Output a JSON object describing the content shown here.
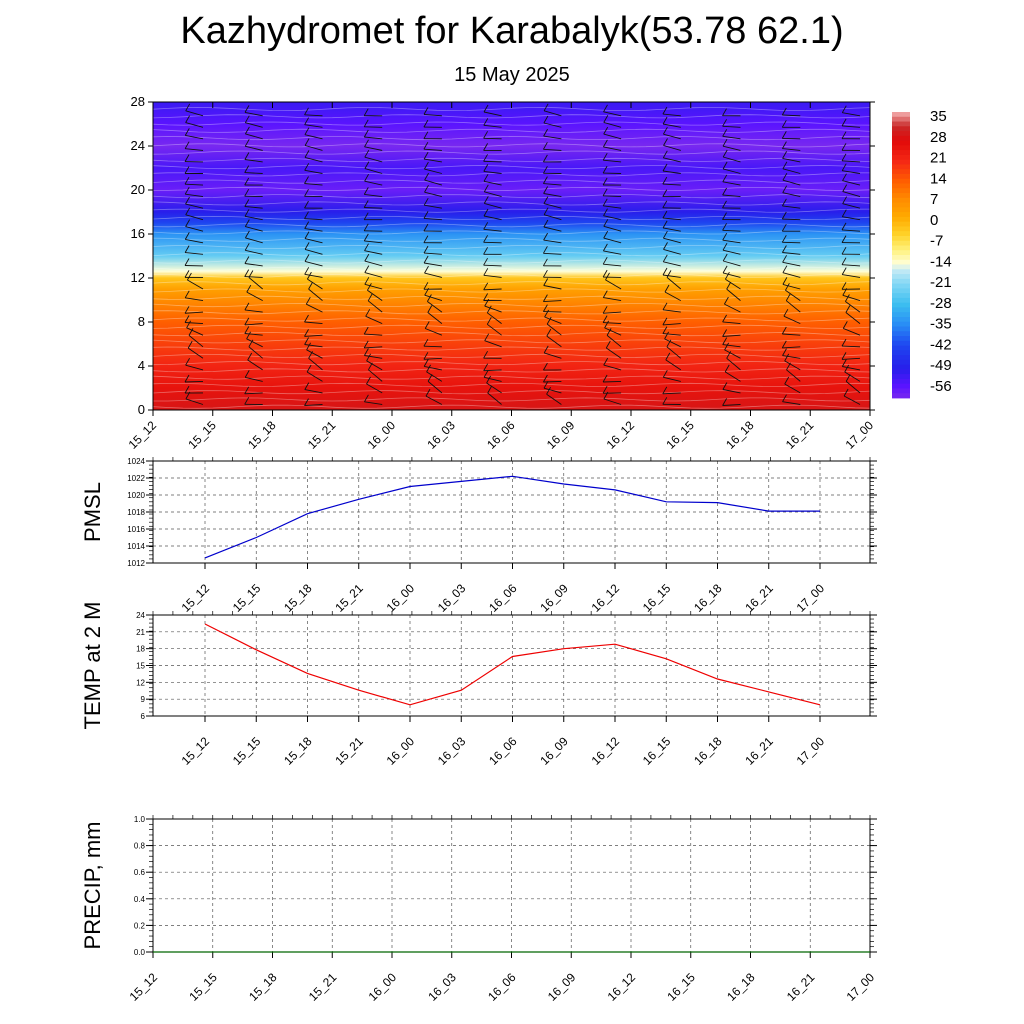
{
  "header": {
    "title": "Kazhydromet for Karabalyk(53.78 62.1)",
    "subtitle": "15 May 2025"
  },
  "time_labels": [
    "15_12",
    "15_15",
    "15_18",
    "15_21",
    "16_00",
    "16_03",
    "16_06",
    "16_09",
    "16_12",
    "16_15",
    "16_18",
    "16_21",
    "17_00"
  ],
  "chart_data": [
    {
      "type": "heatmap",
      "title": "",
      "xlabel": "",
      "ylabel": "",
      "x": [
        "15_12",
        "15_15",
        "15_18",
        "15_21",
        "16_00",
        "16_03",
        "16_06",
        "16_09",
        "16_12",
        "16_15",
        "16_18",
        "16_21",
        "17_00"
      ],
      "yticks": [
        0,
        4,
        8,
        12,
        16,
        20,
        24,
        28
      ],
      "ylim": [
        0,
        28
      ],
      "overlay": "wind-barbs",
      "colorbar": {
        "labels": [
          "35",
          "28",
          "21",
          "14",
          "7",
          "0",
          "-7",
          "-14",
          "-21",
          "-28",
          "-35",
          "-42",
          "-49",
          "-56"
        ],
        "range": [
          -60,
          38
        ]
      },
      "temperature_profile": [
        {
          "level": 0,
          "value": 30
        },
        {
          "level": 2,
          "value": 26
        },
        {
          "level": 4,
          "value": 22
        },
        {
          "level": 6,
          "value": 18
        },
        {
          "level": 8,
          "value": 14
        },
        {
          "level": 10,
          "value": 8
        },
        {
          "level": 11,
          "value": 4
        },
        {
          "level": 12,
          "value": -2
        },
        {
          "level": 12.6,
          "value": -14
        },
        {
          "level": 14,
          "value": -24
        },
        {
          "level": 16,
          "value": -34
        },
        {
          "level": 17,
          "value": -42
        },
        {
          "level": 18,
          "value": -50
        },
        {
          "level": 20,
          "value": -58
        },
        {
          "level": 22,
          "value": -54
        },
        {
          "level": 24,
          "value": -60
        },
        {
          "level": 26,
          "value": -56
        },
        {
          "level": 28,
          "value": -52
        }
      ]
    },
    {
      "type": "line",
      "title": "",
      "ylabel": "PMSL",
      "ylim": [
        1012,
        1024
      ],
      "yticks": [
        1012,
        1014,
        1016,
        1018,
        1020,
        1022,
        1024
      ],
      "categories": [
        "15_12",
        "15_15",
        "15_18",
        "15_21",
        "16_00",
        "16_03",
        "16_06",
        "16_09",
        "16_12",
        "16_15",
        "16_18",
        "16_21",
        "17_00"
      ],
      "series": [
        {
          "color": "#0000cc",
          "values": [
            1012.6,
            1015.0,
            1017.8,
            1019.5,
            1021.0,
            1021.6,
            1022.2,
            1021.3,
            1020.6,
            1019.2,
            1019.1,
            1018.1,
            1018.1
          ]
        }
      ],
      "grid": true
    },
    {
      "type": "line",
      "title": "",
      "ylabel": "TEMP at 2 M",
      "ylim": [
        6,
        24
      ],
      "yticks": [
        6,
        9,
        12,
        15,
        18,
        21,
        24
      ],
      "categories": [
        "15_12",
        "15_15",
        "15_18",
        "15_21",
        "16_00",
        "16_03",
        "16_06",
        "16_09",
        "16_12",
        "16_15",
        "16_18",
        "16_21",
        "17_00"
      ],
      "series": [
        {
          "color": "#ee0000",
          "values": [
            22.4,
            17.8,
            13.6,
            10.6,
            8.0,
            10.6,
            16.6,
            18.0,
            18.8,
            16.2,
            12.6,
            10.3,
            8.0
          ]
        }
      ],
      "grid": true
    },
    {
      "type": "line",
      "title": "",
      "ylabel": "PRECIP, mm",
      "ylim": [
        0.0,
        1.0
      ],
      "yticks": [
        "0.0",
        "0.2",
        "0.4",
        "0.6",
        "0.8",
        "1.0"
      ],
      "categories": [
        "15_12",
        "15_15",
        "15_18",
        "15_21",
        "16_00",
        "16_03",
        "16_06",
        "16_09",
        "16_12",
        "16_15",
        "16_18",
        "16_21",
        "17_00"
      ],
      "series": [
        {
          "color": "#006600",
          "values": [
            0,
            0,
            0,
            0,
            0,
            0,
            0,
            0,
            0,
            0,
            0,
            0,
            0
          ]
        }
      ],
      "grid": true
    }
  ]
}
